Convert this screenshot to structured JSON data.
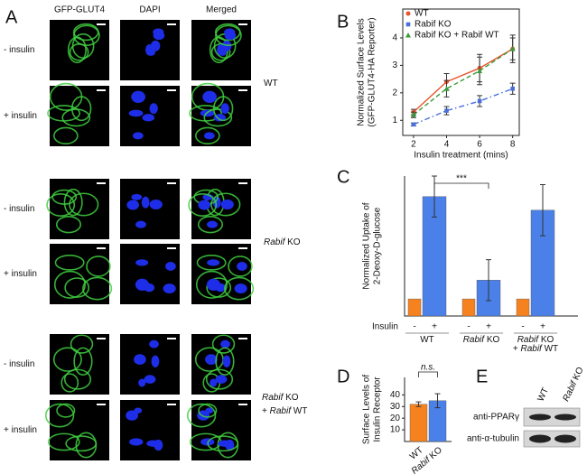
{
  "panel_a": {
    "label": "A",
    "columns": [
      "GFP-GLUT4",
      "DAPI",
      "Merged"
    ],
    "rows": [
      "- insulin",
      "+ insulin",
      "- insulin",
      "+ insulin",
      "- insulin",
      "+ insulin"
    ],
    "groups": [
      [
        [
          {
            "text": "WT"
          }
        ]
      ],
      [
        [
          {
            "text": "Rabif",
            "italic": true
          },
          {
            "text": " KO"
          }
        ]
      ],
      [
        [
          {
            "text": "Rabif",
            "italic": true
          },
          {
            "text": " KO"
          }
        ],
        [
          {
            "text": "+ "
          },
          {
            "text": "Rabif",
            "italic": true
          },
          {
            "text": " WT"
          }
        ]
      ]
    ]
  },
  "chart_data": [
    {
      "type": "line",
      "panel": "B",
      "ylabel": [
        "Normalized Surface Levels",
        "(GFP-GLUT4-HA Reporter)"
      ],
      "xlabel": "Insulin treatment (mins)",
      "x": [
        2,
        4,
        6,
        8
      ],
      "xlim": [
        1.35,
        8.4
      ],
      "xticks": [
        2,
        4,
        6,
        8
      ],
      "ylim": [
        0.45,
        5.05
      ],
      "yticks": [
        1,
        2,
        3,
        4
      ],
      "legend": "upper left",
      "series": [
        {
          "name": "WT",
          "color": "#e8542c",
          "marker": "circle",
          "dash": "solid",
          "values": [
            1.3,
            2.4,
            2.9,
            3.6
          ],
          "errors": [
            0.1,
            0.3,
            0.5,
            0.5
          ]
        },
        {
          "name": "Rabif KO",
          "color": "#4a6fd8",
          "marker": "square",
          "dash": "dashdot",
          "values": [
            0.85,
            1.35,
            1.7,
            2.15
          ],
          "errors": [
            0.05,
            0.15,
            0.2,
            0.2
          ]
        },
        {
          "name": "Rabif KO + Rabif WT",
          "color": "#3a9a3a",
          "marker": "triangle",
          "dash": "dashed",
          "values": [
            1.2,
            2.15,
            2.8,
            3.6
          ],
          "errors": [
            0.1,
            0.3,
            0.5,
            0.4
          ]
        }
      ]
    },
    {
      "type": "bar",
      "panel": "C",
      "ylabel": [
        "Normalized Uptake of",
        "2-Deoxy-D-glucose"
      ],
      "xlabel": "Insulin",
      "annotation": "***",
      "categories": [
        [
          [
            {
              "text": "WT"
            }
          ]
        ],
        [
          [
            {
              "text": "Rabif",
              "italic": true
            },
            {
              "text": " KO"
            }
          ]
        ],
        [
          [
            {
              "text": "Rabif",
              "italic": true
            },
            {
              "text": " KO"
            }
          ],
          [
            {
              "text": "+ "
            },
            {
              "text": "Rabif",
              "italic": true
            },
            {
              "text": " WT"
            }
          ]
        ]
      ],
      "ylim": [
        0,
        8.2
      ],
      "series": [
        {
          "name": "-",
          "color": "#f5821f",
          "values": [
            1,
            1,
            1
          ]
        },
        {
          "name": "+",
          "color": "#4a80e8",
          "values": [
            7.0,
            2.1,
            6.2
          ],
          "errors": [
            1.2,
            1.2,
            1.5
          ]
        }
      ]
    },
    {
      "type": "bar",
      "panel": "D",
      "ylabel": [
        "Surface Levels of",
        "Insulin Receptor"
      ],
      "annotation": "n.s.",
      "categories": [
        [
          [
            {
              "text": "WT"
            }
          ]
        ],
        [
          [
            {
              "text": "Rabif",
              "italic": true
            },
            {
              "text": " KO"
            }
          ]
        ]
      ],
      "values": [
        32,
        35
      ],
      "errors": [
        2,
        6
      ],
      "colors": [
        "#f5821f",
        "#4a80e8"
      ],
      "ylim": [
        0,
        55
      ],
      "yticks": [
        10,
        20,
        30,
        40
      ]
    }
  ],
  "panel_e": {
    "label": "E",
    "columns": [
      [
        [
          {
            "text": "WT"
          }
        ]
      ],
      [
        [
          {
            "text": "Rabif",
            "italic": true
          },
          {
            "text": " KO"
          }
        ]
      ]
    ],
    "rows": [
      "anti-PPARγ",
      "anti-α-tubulin"
    ]
  }
}
